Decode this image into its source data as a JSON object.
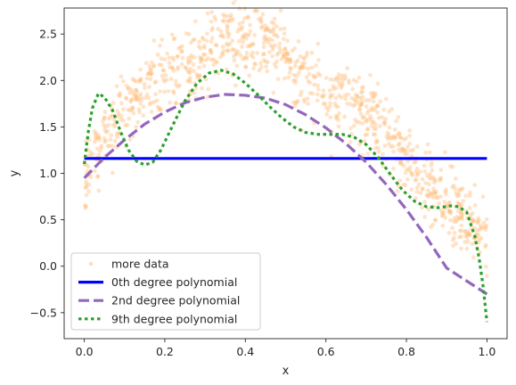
{
  "chart_data": {
    "type": "scatter",
    "xlabel": "x",
    "ylabel": "y",
    "xlim": [
      -0.05,
      1.05
    ],
    "ylim": [
      -0.78,
      2.78
    ],
    "xticks": [
      "0.0",
      "0.2",
      "0.4",
      "0.6",
      "0.8",
      "1.0"
    ],
    "xtick_values": [
      0.0,
      0.2,
      0.4,
      0.6,
      0.8,
      1.0
    ],
    "yticks": [
      "−0.5",
      "0.0",
      "0.5",
      "1.0",
      "1.5",
      "2.0",
      "2.5"
    ],
    "ytick_values": [
      -0.5,
      0.0,
      0.5,
      1.0,
      1.5,
      2.0,
      2.5
    ],
    "grid": false,
    "legend_position": "lower-left",
    "scatter": {
      "name": "more data",
      "color": "#ffbb78",
      "n_points": 1000,
      "noise_sd": 0.28,
      "x_range": [
        0.0,
        1.0
      ]
    },
    "series": [
      {
        "name": "0th degree polynomial",
        "color": "#0000ff",
        "style": "solid",
        "x": [
          0.0,
          1.0
        ],
        "y": [
          1.16,
          1.16
        ]
      },
      {
        "name": "2nd degree polynomial",
        "color": "#9467bd",
        "style": "dashed",
        "x": [
          0.0,
          0.05,
          0.1,
          0.15,
          0.2,
          0.25,
          0.3,
          0.35,
          0.4,
          0.45,
          0.5,
          0.55,
          0.6,
          0.65,
          0.7,
          0.75,
          0.8,
          0.85,
          0.9,
          0.95,
          1.0
        ],
        "y": [
          0.95,
          1.17,
          1.36,
          1.53,
          1.66,
          1.76,
          1.82,
          1.85,
          1.84,
          1.81,
          1.74,
          1.63,
          1.49,
          1.32,
          1.12,
          0.88,
          0.61,
          0.31,
          -0.02,
          -0.16,
          -0.3
        ]
      },
      {
        "name": "9th degree polynomial",
        "color": "#2ca02c",
        "style": "dotted",
        "x": [
          0.0,
          0.01,
          0.02,
          0.035,
          0.05,
          0.07,
          0.09,
          0.11,
          0.13,
          0.15,
          0.17,
          0.19,
          0.22,
          0.25,
          0.28,
          0.31,
          0.34,
          0.37,
          0.4,
          0.43,
          0.46,
          0.49,
          0.52,
          0.55,
          0.58,
          0.61,
          0.64,
          0.67,
          0.7,
          0.73,
          0.76,
          0.79,
          0.82,
          0.85,
          0.88,
          0.91,
          0.93,
          0.95,
          0.97,
          0.98,
          0.99,
          1.0
        ],
        "y": [
          1.1,
          1.45,
          1.7,
          1.86,
          1.82,
          1.68,
          1.45,
          1.25,
          1.13,
          1.09,
          1.12,
          1.25,
          1.52,
          1.78,
          1.97,
          2.08,
          2.11,
          2.07,
          1.97,
          1.85,
          1.72,
          1.6,
          1.5,
          1.44,
          1.42,
          1.42,
          1.42,
          1.39,
          1.31,
          1.17,
          0.99,
          0.82,
          0.7,
          0.64,
          0.63,
          0.65,
          0.64,
          0.58,
          0.32,
          0.1,
          -0.2,
          -0.6
        ]
      }
    ]
  }
}
